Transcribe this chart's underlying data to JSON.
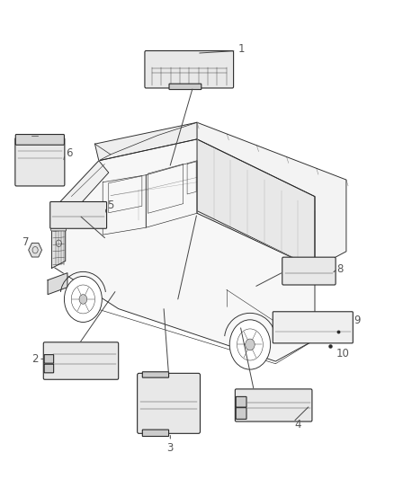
{
  "background_color": "#ffffff",
  "fig_width": 4.38,
  "fig_height": 5.33,
  "dpi": 100,
  "label_fontsize": 8.5,
  "label_color": "#555555",
  "truck_outline_color": "#2a2a2a",
  "module_fill_color": "#e8e8e8",
  "module_edge_color": "#2a2a2a",
  "line_color": "#444444",
  "line_width": 0.7
}
